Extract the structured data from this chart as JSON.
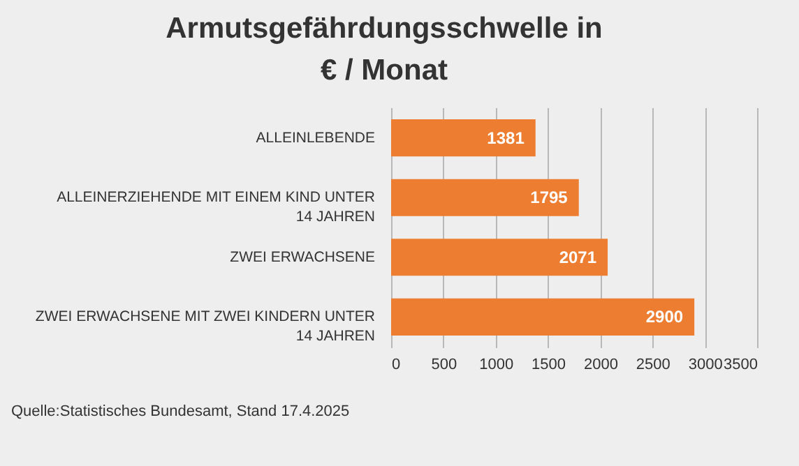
{
  "chart_data": {
    "type": "bar",
    "orientation": "horizontal",
    "title": "Armutsgefährdungsschwelle in\n€ / Monat",
    "categories": [
      "ALLEINLEBENDE",
      "ALLEINERZIEHENDE MIT EINEM KIND UNTER 14 JAHREN",
      "ZWEI ERWACHSENE",
      "ZWEI ERWACHSENE MIT ZWEI KINDERN UNTER 14 JAHREN"
    ],
    "values": [
      1381,
      1795,
      2071,
      2900
    ],
    "color": "#ed7d31",
    "data_labels": true,
    "xlim": [
      0,
      3500
    ],
    "xticks": [
      0,
      500,
      1000,
      1500,
      2000,
      2500,
      3000,
      3500
    ],
    "grid": "x",
    "annotations": [
      "Quelle:Statistisches Bundesamt, Stand 17.4.2025"
    ]
  }
}
